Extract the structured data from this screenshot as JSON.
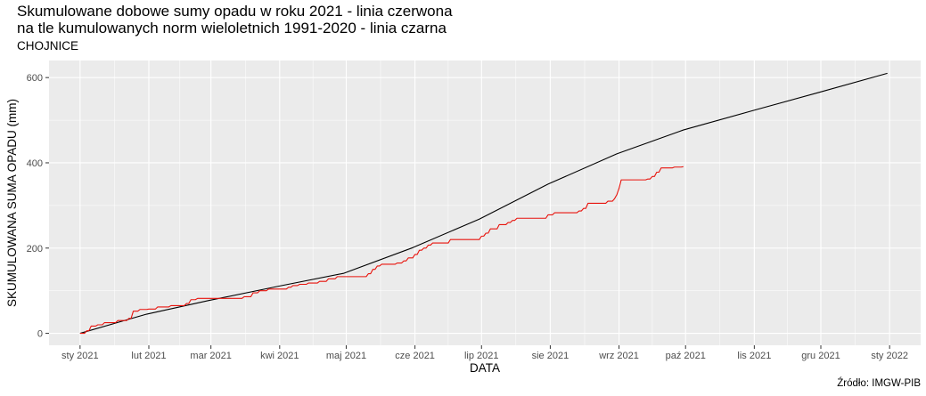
{
  "header": {
    "title_line1": "Skumulowane dobowe sumy opadu w roku 2021 - linia czerwona",
    "title_line2": "na tle kumulowanych norm wieloletnich 1991-2020 - linia czarna",
    "subtitle": "CHOJNICE",
    "caption": "Źródło: IMGW-PIB"
  },
  "chart_data": {
    "type": "line",
    "title": "Skumulowane dobowe sumy opadu w roku 2021 - linia czerwona\nna tle kumulowanych norm wieloletnich 1991-2020 - linia czarna",
    "subtitle": "CHOJNICE",
    "xlabel": "DATA",
    "ylabel": "SKUMULOWANA SUMA OPADU (mm)",
    "xlim": [
      "2020-12-18",
      "2022-01-15"
    ],
    "ylim": [
      -28,
      640
    ],
    "x_ticks": [
      "2021-01-01",
      "2021-02-01",
      "2021-03-01",
      "2021-04-01",
      "2021-05-01",
      "2021-06-01",
      "2021-07-01",
      "2021-08-01",
      "2021-09-01",
      "2021-10-01",
      "2021-11-01",
      "2021-12-01",
      "2022-01-01"
    ],
    "x_tick_labels": [
      "sty 2021",
      "lut 2021",
      "mar 2021",
      "kwi 2021",
      "maj 2021",
      "cze 2021",
      "lip 2021",
      "sie 2021",
      "wrz 2021",
      "paź 2021",
      "lis 2021",
      "gru 2021",
      "sty 2022"
    ],
    "y_ticks": [
      0,
      200,
      400,
      600
    ],
    "grid": true,
    "background": "#ebebeb",
    "series": [
      {
        "color": "#000000",
        "points": [
          [
            "2021-01-01",
            0
          ],
          [
            "2021-01-31",
            45
          ],
          [
            "2021-02-28",
            77
          ],
          [
            "2021-03-31",
            110
          ],
          [
            "2021-04-30",
            141
          ],
          [
            "2021-05-31",
            201
          ],
          [
            "2021-06-30",
            268
          ],
          [
            "2021-07-31",
            350
          ],
          [
            "2021-08-31",
            421
          ],
          [
            "2021-09-30",
            477
          ],
          [
            "2021-10-31",
            522
          ],
          [
            "2021-11-30",
            565
          ],
          [
            "2021-12-31",
            610
          ]
        ]
      },
      {
        "color": "#e8130c",
        "step": true,
        "points": [
          [
            "2021-01-01",
            0
          ],
          [
            "2021-01-04",
            6
          ],
          [
            "2021-01-06",
            17
          ],
          [
            "2021-01-09",
            20
          ],
          [
            "2021-01-12",
            25
          ],
          [
            "2021-01-18",
            30
          ],
          [
            "2021-01-23",
            35
          ],
          [
            "2021-01-25",
            52
          ],
          [
            "2021-01-28",
            56
          ],
          [
            "2021-02-01",
            57
          ],
          [
            "2021-02-05",
            62
          ],
          [
            "2021-02-11",
            65
          ],
          [
            "2021-02-18",
            70
          ],
          [
            "2021-02-20",
            79
          ],
          [
            "2021-02-23",
            82
          ],
          [
            "2021-03-16",
            86
          ],
          [
            "2021-03-20",
            95
          ],
          [
            "2021-03-23",
            100
          ],
          [
            "2021-03-27",
            104
          ],
          [
            "2021-04-05",
            108
          ],
          [
            "2021-04-07",
            112
          ],
          [
            "2021-04-10",
            115
          ],
          [
            "2021-04-14",
            118
          ],
          [
            "2021-04-19",
            122
          ],
          [
            "2021-04-23",
            128
          ],
          [
            "2021-04-27",
            133
          ],
          [
            "2021-05-11",
            140
          ],
          [
            "2021-05-13",
            150
          ],
          [
            "2021-05-15",
            158
          ],
          [
            "2021-05-17",
            162
          ],
          [
            "2021-05-24",
            165
          ],
          [
            "2021-05-27",
            170
          ],
          [
            "2021-05-29",
            177
          ],
          [
            "2021-06-01",
            185
          ],
          [
            "2021-06-03",
            195
          ],
          [
            "2021-06-05",
            200
          ],
          [
            "2021-06-07",
            207
          ],
          [
            "2021-06-09",
            212
          ],
          [
            "2021-06-17",
            220
          ],
          [
            "2021-07-01",
            228
          ],
          [
            "2021-07-03",
            235
          ],
          [
            "2021-07-05",
            245
          ],
          [
            "2021-07-09",
            255
          ],
          [
            "2021-07-13",
            260
          ],
          [
            "2021-07-15",
            265
          ],
          [
            "2021-07-17",
            270
          ],
          [
            "2021-07-31",
            278
          ],
          [
            "2021-08-03",
            283
          ],
          [
            "2021-08-14",
            287
          ],
          [
            "2021-08-16",
            293
          ],
          [
            "2021-08-18",
            305
          ],
          [
            "2021-08-27",
            310
          ],
          [
            "2021-08-30",
            316
          ],
          [
            "2021-08-31",
            325
          ],
          [
            "2021-09-01",
            340
          ],
          [
            "2021-09-02",
            360
          ],
          [
            "2021-09-14",
            362
          ],
          [
            "2021-09-16",
            368
          ],
          [
            "2021-09-18",
            378
          ],
          [
            "2021-09-20",
            388
          ],
          [
            "2021-09-26",
            390
          ],
          [
            "2021-09-30",
            391
          ]
        ]
      }
    ]
  }
}
